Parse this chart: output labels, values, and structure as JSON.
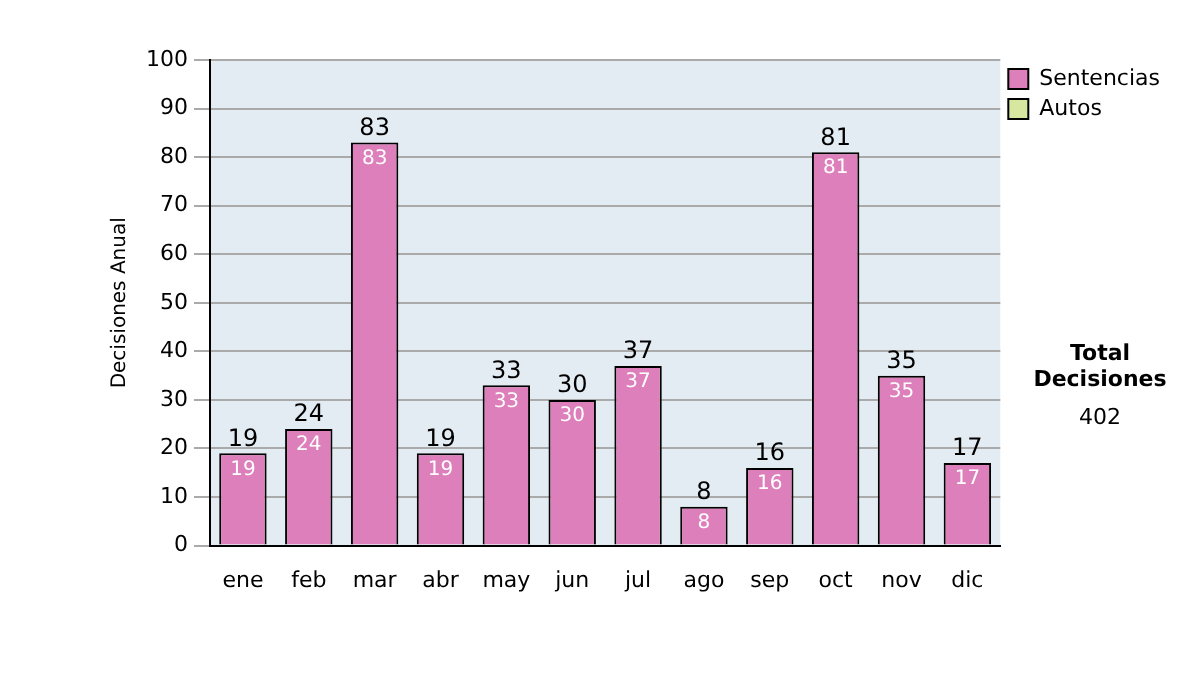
{
  "chart_data": {
    "type": "bar",
    "stacked": true,
    "ylabel": "Decisiones Anual",
    "categories": [
      "ene",
      "feb",
      "mar",
      "abr",
      "may",
      "jun",
      "jul",
      "ago",
      "sep",
      "oct",
      "nov",
      "dic"
    ],
    "series": [
      {
        "name": "Sentencias",
        "color": "#dd7fbb",
        "values": [
          19,
          24,
          83,
          19,
          33,
          30,
          37,
          8,
          16,
          81,
          35,
          17
        ],
        "value_labels": [
          "19",
          "24",
          "83",
          "19",
          "33",
          "30",
          "37",
          "8",
          "16",
          "81",
          "35",
          "17"
        ]
      },
      {
        "name": "Autos",
        "color": "#d6e8a0",
        "values": [
          0,
          0,
          0,
          0,
          0,
          0,
          0,
          0,
          0,
          0,
          0,
          0
        ]
      }
    ],
    "totals": [
      "19",
      "24",
      "83",
      "19",
      "33",
      "30",
      "37",
      "8",
      "16",
      "81",
      "35",
      "17"
    ],
    "ylim": [
      0,
      100
    ],
    "yticks": [
      0,
      10,
      20,
      30,
      40,
      50,
      60,
      70,
      80,
      90,
      100
    ],
    "grid": "y",
    "legend": "right",
    "annotations": [
      "Total Decisiones",
      "402"
    ]
  }
}
